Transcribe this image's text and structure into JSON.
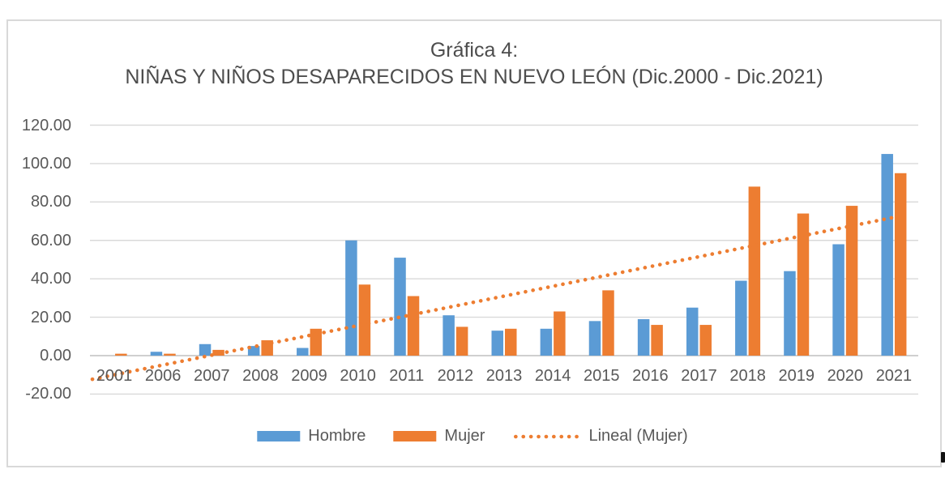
{
  "title": {
    "line1": "Gráfica 4:",
    "line2": "NIÑAS Y NIÑOS DESAPARECIDOS EN NUEVO LEÓN (Dic.2000 - Dic.2021)"
  },
  "colors": {
    "hombre": "#5B9BD5",
    "mujer": "#ED7D31",
    "trendline": "#ED7D31",
    "gridline": "#D9D9D9",
    "axis_line": "#BFBFBF",
    "text": "#595959",
    "frame_border": "#D9D9D9"
  },
  "y_axis": {
    "tick_labels": [
      "120.00",
      "100.00",
      "80.00",
      "60.00",
      "40.00",
      "20.00",
      "0.00",
      "-20.00"
    ],
    "tick_values": [
      120,
      100,
      80,
      60,
      40,
      20,
      0,
      -20
    ],
    "min": -20,
    "max": 120
  },
  "legend": {
    "items": [
      {
        "label": "Hombre",
        "swatch": "bar",
        "color": "#5B9BD5"
      },
      {
        "label": "Mujer",
        "swatch": "bar",
        "color": "#ED7D31"
      },
      {
        "label": "Lineal (Mujer)",
        "swatch": "dotted-line",
        "color": "#ED7D31"
      }
    ]
  },
  "chart_data": {
    "type": "bar",
    "title": "Gráfica 4: NIÑAS Y NIÑOS DESAPARECIDOS EN NUEVO LEÓN (Dic.2000 - Dic.2021)",
    "categories": [
      "2001",
      "2006",
      "2007",
      "2008",
      "2009",
      "2010",
      "2011",
      "2012",
      "2013",
      "2014",
      "2015",
      "2016",
      "2017",
      "2018",
      "2019",
      "2020",
      "2021"
    ],
    "series": [
      {
        "name": "Hombre",
        "color": "#5B9BD5",
        "values": [
          0,
          2,
          6,
          5,
          4,
          60,
          51,
          21,
          13,
          14,
          18,
          19,
          25,
          39,
          44,
          58,
          105
        ]
      },
      {
        "name": "Mujer",
        "color": "#ED7D31",
        "values": [
          1,
          1,
          3,
          8,
          14,
          37,
          31,
          15,
          14,
          23,
          34,
          16,
          16,
          88,
          74,
          78,
          95
        ]
      }
    ],
    "trendline": {
      "name": "Lineal (Mujer)",
      "based_on": "Mujer",
      "style": "dotted",
      "color": "#ED7D31",
      "start_value": -10,
      "end_value": 72
    },
    "ylim": [
      -20,
      120
    ],
    "grid": true,
    "legend_position": "bottom"
  }
}
